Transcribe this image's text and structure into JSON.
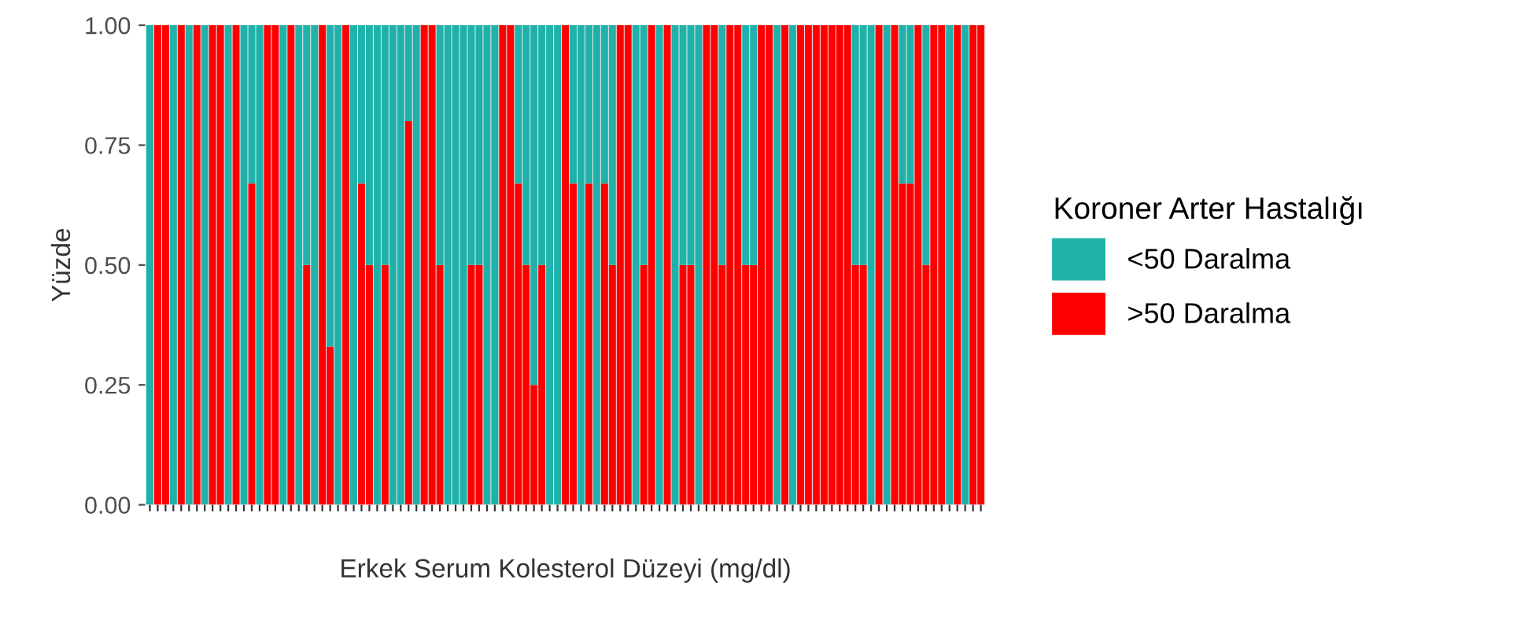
{
  "chart_data": {
    "type": "bar",
    "stacked": true,
    "xlabel": "Erkek Serum Kolesterol Düzeyi (mg/dl)",
    "ylabel": "Yüzde",
    "legend_title": "Koroner Arter Hastalığı",
    "legend": "right",
    "categories": [
      null,
      null,
      null,
      null,
      null,
      null,
      null,
      null,
      null,
      null,
      null,
      null,
      null,
      null,
      null,
      null,
      null,
      null,
      null,
      null,
      null,
      null,
      null,
      null,
      null,
      null,
      null,
      null,
      null,
      null,
      null,
      null,
      null,
      null,
      null,
      null,
      null,
      null,
      null,
      null,
      null,
      null,
      null,
      null,
      null,
      null,
      null,
      null,
      null,
      null,
      null,
      null,
      null,
      null,
      null,
      null,
      null,
      null,
      null,
      null,
      null,
      null,
      null,
      null,
      null,
      null,
      null,
      null,
      null,
      null,
      null,
      null,
      null,
      null,
      null,
      null,
      null,
      null,
      null,
      null,
      null,
      null,
      null,
      null,
      null,
      null,
      null,
      null,
      null,
      null,
      null,
      null,
      null,
      null,
      null,
      null,
      null,
      null,
      null,
      null,
      null,
      null,
      null,
      null,
      null,
      null,
      null
    ],
    "ylim": [
      0,
      1
    ],
    "yticks": [
      {
        "value": 0,
        "label": "0.00"
      },
      {
        "value": 0.25,
        "label": "0.25"
      },
      {
        "value": 0.5,
        "label": "0.50"
      },
      {
        "value": 0.75,
        "label": "0.75"
      },
      {
        "value": 1,
        "label": "1.00"
      }
    ],
    "series": [
      {
        "name": ">50 Daralma",
        "color": "#ff0000",
        "values": [
          0,
          1,
          1,
          0,
          1,
          0,
          1,
          0,
          1,
          1,
          0,
          1,
          0,
          0.67,
          0,
          1,
          1,
          0,
          1,
          0,
          0.5,
          0,
          1,
          0.33,
          0,
          1,
          0,
          0.67,
          0.5,
          0,
          0.5,
          0,
          0,
          0.8,
          0,
          1,
          1,
          0.5,
          0,
          0,
          0,
          0.5,
          0.5,
          0,
          0,
          1,
          1,
          0.67,
          0.5,
          0.25,
          0.5,
          0,
          0,
          1,
          0.67,
          0,
          0.67,
          0,
          0.67,
          0.5,
          1,
          1,
          0,
          0.5,
          1,
          0,
          1,
          0,
          0.5,
          0.5,
          0,
          1,
          1,
          0.5,
          1,
          1,
          0.5,
          0.5,
          1,
          1,
          0,
          1,
          0,
          1,
          1,
          1,
          1,
          1,
          1,
          1,
          0.5,
          0.5,
          0,
          1,
          0,
          1,
          0.67,
          0.67,
          1,
          0.5,
          1,
          1,
          0,
          1,
          0,
          1,
          1
        ]
      },
      {
        "name": "<50 Daralma",
        "color": "#20b2aa",
        "values": [
          1,
          0,
          0,
          1,
          0,
          1,
          0,
          1,
          0,
          0,
          1,
          0,
          1,
          0.33,
          1,
          0,
          0,
          1,
          0,
          1,
          0.5,
          1,
          0,
          0.67,
          1,
          0,
          1,
          0.33,
          0.5,
          1,
          0.5,
          1,
          1,
          0.2,
          1,
          0,
          0,
          0.5,
          1,
          1,
          1,
          0.5,
          0.5,
          1,
          1,
          0,
          0,
          0.33,
          0.5,
          0.75,
          0.5,
          1,
          1,
          0,
          0.33,
          1,
          0.33,
          1,
          0.33,
          0.5,
          0,
          0,
          1,
          0.5,
          0,
          1,
          0,
          1,
          0.5,
          0.5,
          1,
          0,
          0,
          0.5,
          0,
          0,
          0.5,
          0.5,
          0,
          0,
          1,
          0,
          1,
          0,
          0,
          0,
          0,
          0,
          0,
          0,
          0.5,
          0.5,
          1,
          0,
          1,
          0,
          0.33,
          0.33,
          0,
          0.5,
          0,
          0,
          1,
          0,
          1,
          0,
          0
        ]
      }
    ]
  }
}
